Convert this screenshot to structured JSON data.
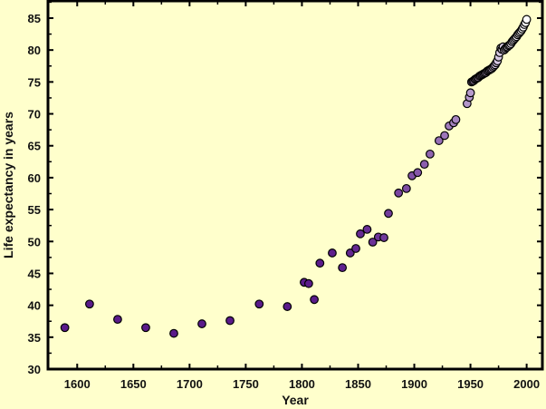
{
  "chart_data": {
    "type": "scatter",
    "title": "",
    "xlabel": "Year",
    "ylabel": "Life expectancy in years",
    "xlim": [
      1574,
      2014
    ],
    "ylim": [
      30,
      87.7
    ],
    "xticks": [
      1600,
      1650,
      1700,
      1750,
      1800,
      1850,
      1900,
      1950,
      2000
    ],
    "yticks": [
      30,
      35,
      40,
      45,
      50,
      55,
      60,
      65,
      70,
      75,
      80,
      85
    ],
    "grid": false,
    "colors": {
      "background": "#ffffcc",
      "early_point": "#5a1a8a",
      "late_point": "#ffffff",
      "outline": "#000000"
    },
    "points": [
      [
        1589,
        36.5
      ],
      [
        1611,
        40.2
      ],
      [
        1636,
        37.8
      ],
      [
        1661,
        36.5
      ],
      [
        1686,
        35.6
      ],
      [
        1711,
        37.1
      ],
      [
        1736,
        37.6
      ],
      [
        1762,
        40.2
      ],
      [
        1787,
        39.8
      ],
      [
        1802,
        43.6
      ],
      [
        1806,
        43.4
      ],
      [
        1811,
        40.9
      ],
      [
        1816,
        46.6
      ],
      [
        1827,
        48.2
      ],
      [
        1836,
        45.9
      ],
      [
        1843,
        48.2
      ],
      [
        1848,
        48.9
      ],
      [
        1852,
        51.2
      ],
      [
        1858,
        51.9
      ],
      [
        1863,
        49.9
      ],
      [
        1868,
        50.7
      ],
      [
        1873,
        50.6
      ],
      [
        1877,
        54.4
      ],
      [
        1886,
        57.6
      ],
      [
        1893,
        58.3
      ],
      [
        1898,
        60.3
      ],
      [
        1903,
        60.8
      ],
      [
        1909,
        62.1
      ],
      [
        1914,
        63.7
      ],
      [
        1922,
        65.8
      ],
      [
        1927,
        66.6
      ],
      [
        1931,
        68.1
      ],
      [
        1935,
        68.6
      ],
      [
        1937,
        69.1
      ],
      [
        1947,
        71.6
      ],
      [
        1949,
        72.6
      ],
      [
        1950,
        73.3
      ],
      [
        1951,
        75.0
      ],
      [
        1952,
        75.1
      ],
      [
        1953,
        75.2
      ],
      [
        1954,
        75.4
      ],
      [
        1955,
        75.5
      ],
      [
        1956,
        75.6
      ],
      [
        1957,
        75.7
      ],
      [
        1958,
        75.9
      ],
      [
        1959,
        76.0
      ],
      [
        1960,
        76.1
      ],
      [
        1961,
        76.2
      ],
      [
        1962,
        76.3
      ],
      [
        1963,
        76.4
      ],
      [
        1964,
        76.5
      ],
      [
        1965,
        76.7
      ],
      [
        1966,
        76.8
      ],
      [
        1967,
        76.9
      ],
      [
        1968,
        77.0
      ],
      [
        1969,
        77.1
      ],
      [
        1970,
        77.3
      ],
      [
        1971,
        77.5
      ],
      [
        1972,
        77.7
      ],
      [
        1973,
        78.0
      ],
      [
        1974,
        78.3
      ],
      [
        1975,
        78.9
      ],
      [
        1976,
        79.6
      ],
      [
        1977,
        80.3
      ],
      [
        1978,
        80.1
      ],
      [
        1979,
        80.5
      ],
      [
        1980,
        80.0
      ],
      [
        1981,
        80.2
      ],
      [
        1982,
        80.4
      ],
      [
        1983,
        80.5
      ],
      [
        1984,
        80.7
      ],
      [
        1985,
        80.8
      ],
      [
        1986,
        81.0
      ],
      [
        1987,
        81.3
      ],
      [
        1988,
        81.5
      ],
      [
        1989,
        81.7
      ],
      [
        1990,
        81.9
      ],
      [
        1991,
        82.1
      ],
      [
        1992,
        82.4
      ],
      [
        1993,
        82.6
      ],
      [
        1994,
        82.8
      ],
      [
        1995,
        83.0
      ],
      [
        1996,
        83.3
      ],
      [
        1997,
        83.6
      ],
      [
        1998,
        84.0
      ],
      [
        1999,
        84.3
      ],
      [
        2000,
        84.8
      ]
    ]
  }
}
